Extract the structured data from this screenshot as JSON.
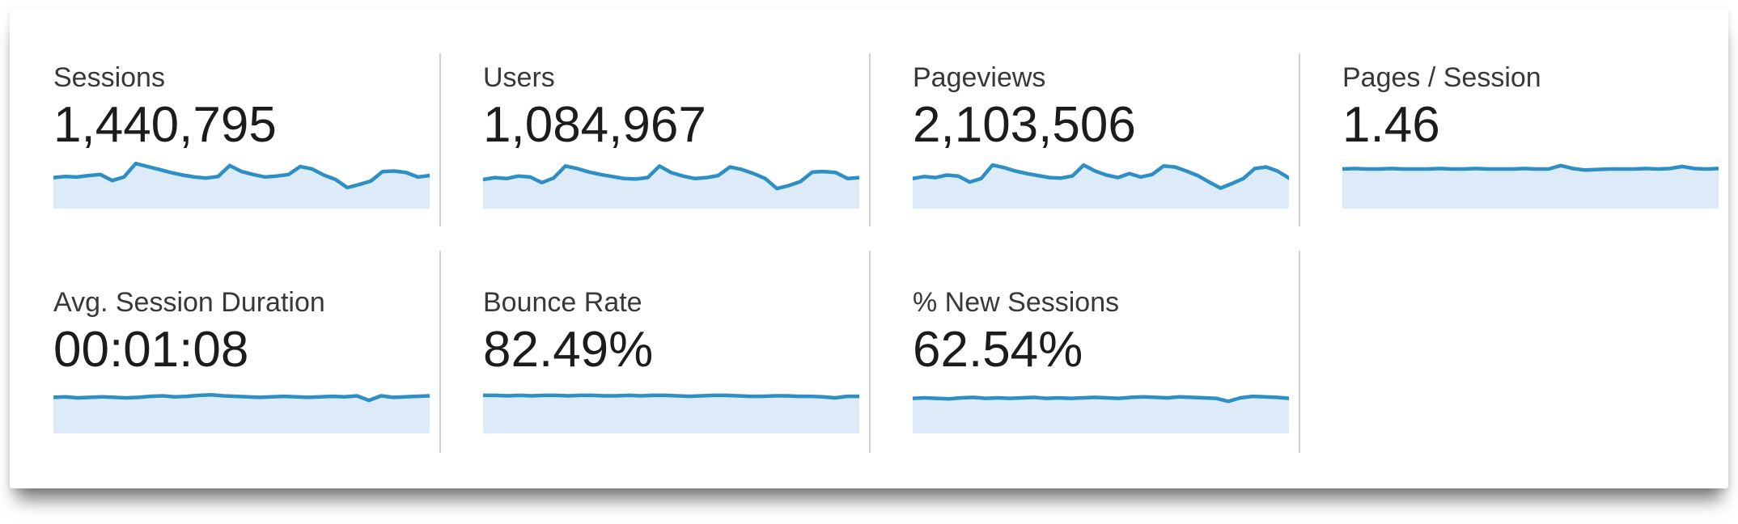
{
  "colors": {
    "sparkline_stroke": "#2e8fc5",
    "sparkline_fill": "#dcebf7",
    "divider": "#d2d2d2",
    "label_text": "#383838",
    "value_text": "#1c1c1c",
    "panel_bg": "#ffffff",
    "page_bg": "#ffffff"
  },
  "metrics": [
    {
      "id": "sessions",
      "label": "Sessions",
      "value": "1,440,795",
      "chart_type": "area-sparkline",
      "sparkline": [
        62,
        64,
        63,
        66,
        68,
        56,
        63,
        90,
        84,
        78,
        72,
        67,
        63,
        61,
        64,
        86,
        74,
        68,
        63,
        65,
        68,
        84,
        79,
        67,
        58,
        42,
        48,
        55,
        74,
        75,
        72,
        63,
        66
      ]
    },
    {
      "id": "users",
      "label": "Users",
      "value": "1,084,967",
      "chart_type": "area-sparkline",
      "sparkline": [
        58,
        62,
        60,
        65,
        63,
        52,
        61,
        85,
        80,
        73,
        68,
        64,
        60,
        59,
        62,
        85,
        72,
        65,
        60,
        62,
        66,
        83,
        78,
        70,
        60,
        40,
        46,
        54,
        73,
        74,
        72,
        60,
        62
      ]
    },
    {
      "id": "pageviews",
      "label": "Pageviews",
      "value": "2,103,506",
      "chart_type": "area-sparkline",
      "sparkline": [
        60,
        64,
        62,
        67,
        65,
        53,
        60,
        87,
        82,
        75,
        70,
        66,
        62,
        61,
        65,
        87,
        75,
        67,
        62,
        70,
        63,
        68,
        85,
        83,
        75,
        66,
        53,
        41,
        50,
        60,
        80,
        83,
        75,
        61
      ]
    },
    {
      "id": "pages-per-session",
      "label": "Pages / Session",
      "value": "1.46",
      "chart_type": "area-sparkline",
      "sparkline": [
        79,
        80,
        79,
        79,
        80,
        79,
        79,
        79,
        80,
        79,
        79,
        80,
        79,
        79,
        79,
        80,
        79,
        79,
        86,
        80,
        77,
        78,
        79,
        79,
        79,
        80,
        79,
        80,
        84,
        80,
        79,
        80
      ]
    },
    {
      "id": "avg-session-duration",
      "label": "Avg. Session Duration",
      "value": "00:01:08",
      "chart_type": "area-sparkline",
      "sparkline": [
        72,
        73,
        71,
        72,
        73,
        72,
        71,
        72,
        74,
        75,
        73,
        74,
        76,
        77,
        75,
        74,
        73,
        72,
        73,
        74,
        73,
        72,
        73,
        74,
        73,
        75,
        66,
        75,
        72,
        73,
        74,
        75
      ]
    },
    {
      "id": "bounce-rate",
      "label": "Bounce Rate",
      "value": "82.49%",
      "chart_type": "area-sparkline",
      "sparkline": [
        76,
        76,
        75,
        76,
        75,
        76,
        76,
        75,
        76,
        76,
        75,
        75,
        76,
        75,
        76,
        76,
        75,
        74,
        75,
        76,
        76,
        75,
        74,
        74,
        75,
        75,
        74,
        74,
        73,
        71,
        74,
        74
      ]
    },
    {
      "id": "percent-new-sessions",
      "label": "% New Sessions",
      "value": "62.54%",
      "chart_type": "area-sparkline",
      "sparkline": [
        70,
        71,
        70,
        69,
        71,
        72,
        70,
        71,
        70,
        71,
        72,
        70,
        71,
        70,
        71,
        72,
        71,
        70,
        72,
        73,
        72,
        71,
        73,
        72,
        71,
        70,
        64,
        71,
        74,
        73,
        72,
        70
      ]
    }
  ]
}
